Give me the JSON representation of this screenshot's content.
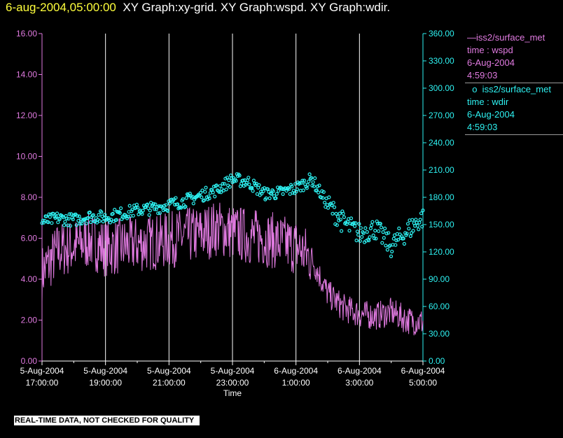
{
  "header": {
    "timestamp": "6-aug-2004,05:00:00",
    "graphs": "XY Graph:xy-grid.  XY Graph:wspd.  XY Graph:wdir."
  },
  "legend": {
    "entries": [
      {
        "lines": [
          "—iss2/surface_met",
          "time : wspd",
          "6-Aug-2004",
          "4:59:03"
        ],
        "color": "#e07ae0"
      },
      {
        "lines": [
          "  o  iss2/surface_met",
          "time : wdir",
          "6-Aug-2004",
          "4:59:03"
        ],
        "color": "#2ef2f2"
      }
    ]
  },
  "disclaimer": "REAL-TIME DATA, NOT CHECKED FOR QUALITY",
  "colors": {
    "wspd": "#e07ae0",
    "wdir": "#2ef2f2",
    "grid": "#ffffff",
    "background": "#000000"
  },
  "chart_data": {
    "type": "line",
    "title": "",
    "xlabel": "Time",
    "x_ticks": [
      {
        "line1": "5-Aug-2004",
        "line2": "17:00:00"
      },
      {
        "line1": "5-Aug-2004",
        "line2": "19:00:00"
      },
      {
        "line1": "5-Aug-2004",
        "line2": "21:00:00"
      },
      {
        "line1": "5-Aug-2004",
        "line2": "23:00:00"
      },
      {
        "line1": "6-Aug-2004",
        "line2": "1:00:00"
      },
      {
        "line1": "6-Aug-2004",
        "line2": "3:00:00"
      },
      {
        "line1": "6-Aug-2004",
        "line2": "5:00:00"
      }
    ],
    "xlim": [
      "5-Aug-2004 17:00:00",
      "6-Aug-2004 05:00:00"
    ],
    "grid": true,
    "y_left": {
      "label": "",
      "lim": [
        0,
        16
      ],
      "ticks": [
        "0.00",
        "2.00",
        "4.00",
        "6.00",
        "8.00",
        "10.00",
        "12.00",
        "14.00",
        "16.00"
      ]
    },
    "y_right": {
      "label": "",
      "lim": [
        0,
        360
      ],
      "ticks": [
        "0.00",
        "30.00",
        "60.00",
        "90.00",
        "120.00",
        "150.00",
        "180.00",
        "210.00",
        "240.00",
        "270.00",
        "300.00",
        "330.00",
        "360.00"
      ]
    },
    "series": [
      {
        "name": "iss2/surface_met time : wspd",
        "axis": "left",
        "style": "line",
        "x_hours_label": "hours since 5-Aug-2004 17:00:00",
        "points": [
          [
            0.0,
            4.3
          ],
          [
            0.5,
            5.4
          ],
          [
            1.0,
            5.6
          ],
          [
            1.5,
            5.9
          ],
          [
            2.0,
            5.5
          ],
          [
            2.5,
            5.6
          ],
          [
            3.0,
            5.7
          ],
          [
            3.5,
            5.8
          ],
          [
            4.0,
            5.9
          ],
          [
            4.5,
            6.1
          ],
          [
            5.0,
            6.2
          ],
          [
            5.5,
            6.5
          ],
          [
            6.0,
            6.3
          ],
          [
            6.5,
            6.1
          ],
          [
            7.0,
            6.0
          ],
          [
            7.5,
            5.8
          ],
          [
            8.0,
            5.6
          ],
          [
            8.5,
            5.0
          ],
          [
            9.0,
            3.3
          ],
          [
            9.5,
            2.6
          ],
          [
            10.0,
            2.3
          ],
          [
            10.5,
            2.2
          ],
          [
            11.0,
            2.4
          ],
          [
            11.5,
            2.0
          ],
          [
            12.0,
            1.9
          ]
        ]
      },
      {
        "name": "iss2/surface_met time : wdir",
        "axis": "right",
        "style": "scatter",
        "points": [
          [
            0.0,
            153
          ],
          [
            0.5,
            157
          ],
          [
            1.0,
            155
          ],
          [
            1.5,
            159
          ],
          [
            2.0,
            158
          ],
          [
            2.5,
            162
          ],
          [
            3.0,
            166
          ],
          [
            3.5,
            168
          ],
          [
            4.0,
            172
          ],
          [
            4.5,
            176
          ],
          [
            5.0,
            182
          ],
          [
            5.5,
            188
          ],
          [
            6.0,
            200
          ],
          [
            6.5,
            197
          ],
          [
            7.0,
            184
          ],
          [
            7.5,
            185
          ],
          [
            8.0,
            190
          ],
          [
            8.5,
            200
          ],
          [
            9.0,
            172
          ],
          [
            9.5,
            152
          ],
          [
            10.0,
            140
          ],
          [
            10.5,
            146
          ],
          [
            11.0,
            126
          ],
          [
            11.5,
            143
          ],
          [
            12.0,
            158
          ]
        ]
      }
    ]
  }
}
